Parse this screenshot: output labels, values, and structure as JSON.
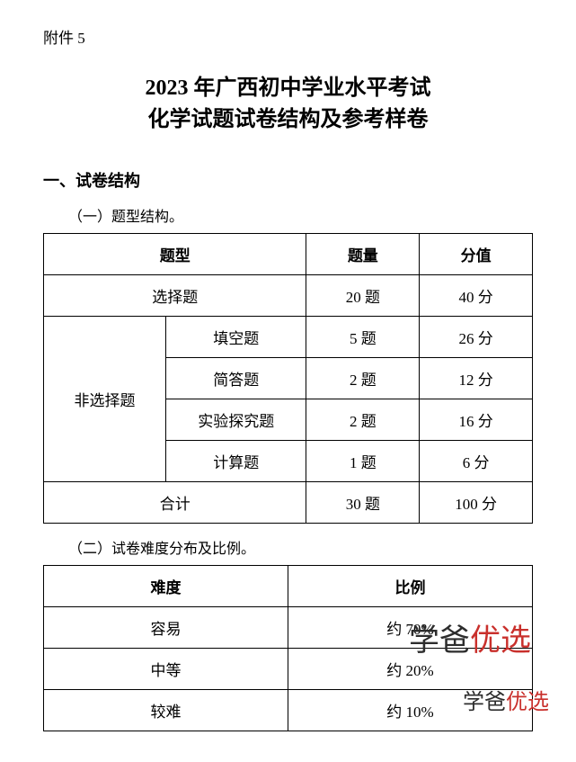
{
  "attachment_label": "附件 5",
  "title_line1": "2023 年广西初中学业水平考试",
  "title_line2": "化学试题试卷结构及参考样卷",
  "section1_heading": "一、试卷结构",
  "sub_heading_1": "（一）题型结构。",
  "table1": {
    "header": {
      "type": "题型",
      "qty": "题量",
      "score": "分值"
    },
    "row_choice": {
      "label": "选择题",
      "qty": "20 题",
      "score": "40 分"
    },
    "non_choice_label": "非选择题",
    "rows": [
      {
        "label": "填空题",
        "qty": "5 题",
        "score": "26 分"
      },
      {
        "label": "简答题",
        "qty": "2 题",
        "score": "12 分"
      },
      {
        "label": "实验探究题",
        "qty": "2 题",
        "score": "16 分"
      },
      {
        "label": "计算题",
        "qty": "1 题",
        "score": "6 分"
      }
    ],
    "total": {
      "label": "合计",
      "qty": "30 题",
      "score": "100 分"
    }
  },
  "sub_heading_2": "（二）试卷难度分布及比例。",
  "table2": {
    "header": {
      "difficulty": "难度",
      "ratio": "比例"
    },
    "rows": [
      {
        "difficulty": "容易",
        "ratio": "约 70%"
      },
      {
        "difficulty": "中等",
        "ratio": "约 20%"
      },
      {
        "difficulty": "较难",
        "ratio": "约 10%"
      }
    ]
  },
  "watermark": {
    "a": "学爸",
    "b": "优选"
  }
}
